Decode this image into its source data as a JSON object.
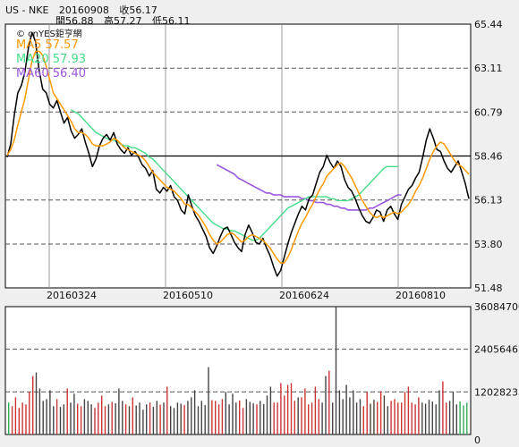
{
  "header": {
    "symbol": "US - NKE",
    "date": "20160908",
    "close_label": "收56.17",
    "open_label": "開56.88",
    "high_label": "高57.27",
    "low_label": "低56.11"
  },
  "watermark": "© cnYES鉅亨網",
  "colors": {
    "price": "#000000",
    "ma5": "#ff9900",
    "ma20": "#44dd88",
    "ma60": "#9955dd",
    "volume_up": "#cc3333",
    "volume_down": "#444444",
    "volume_neutral": "#33aa55"
  },
  "chart_data": [
    {
      "type": "line",
      "panel": "price",
      "y_ticks": [
        "65.44",
        "63.11",
        "60.79",
        "58.46",
        "56.13",
        "53.80",
        "51.48"
      ],
      "ylim": [
        51.48,
        65.44
      ],
      "x_tick_labels": [
        "20160324",
        "20160510",
        "20160624",
        "20160810"
      ],
      "reference_line": 58.46,
      "legend": [
        {
          "label": "MA5 57.57",
          "color": "#ff9900"
        },
        {
          "label": "MA20 57.93",
          "color": "#44dd88"
        },
        {
          "label": "MA60 56.40",
          "color": "#9955dd"
        }
      ],
      "series": [
        {
          "name": "Close",
          "values": [
            58.4,
            59.1,
            60.6,
            61.8,
            62.2,
            62.9,
            64.2,
            65.0,
            64.5,
            63.0,
            62.0,
            61.8,
            61.2,
            61.0,
            61.4,
            60.8,
            60.2,
            60.5,
            59.8,
            59.4,
            59.6,
            59.9,
            59.2,
            58.6,
            57.9,
            58.3,
            59.0,
            59.4,
            59.6,
            59.3,
            59.7,
            59.1,
            58.8,
            58.6,
            58.9,
            58.5,
            58.7,
            58.4,
            58.0,
            57.8,
            57.4,
            57.7,
            56.7,
            56.5,
            56.8,
            56.6,
            56.9,
            56.3,
            56.1,
            55.6,
            55.4,
            56.4,
            55.8,
            55.3,
            55.0,
            54.6,
            54.2,
            53.6,
            53.3,
            53.7,
            54.2,
            54.6,
            54.7,
            54.3,
            53.9,
            53.6,
            53.4,
            54.3,
            54.8,
            54.4,
            53.9,
            53.8,
            54.1,
            53.6,
            53.2,
            52.6,
            52.1,
            52.4,
            53.1,
            53.8,
            54.4,
            54.9,
            55.4,
            55.8,
            55.6,
            56.2,
            56.4,
            57.0,
            57.6,
            57.9,
            58.5,
            58.1,
            57.8,
            58.2,
            57.9,
            57.2,
            56.8,
            56.6,
            56.2,
            55.7,
            55.3,
            55.0,
            54.9,
            55.2,
            55.6,
            55.5,
            55.0,
            55.6,
            55.8,
            55.4,
            55.1,
            55.9,
            56.3,
            56.7,
            56.9,
            57.3,
            57.6,
            58.4,
            59.3,
            59.9,
            59.4,
            58.8,
            58.7,
            58.2,
            57.8,
            57.6,
            57.9,
            58.2,
            57.6,
            57.0,
            56.2
          ]
        },
        {
          "name": "MA5",
          "values": [
            58.5,
            58.8,
            59.3,
            60.1,
            60.8,
            61.5,
            62.5,
            63.5,
            64.0,
            64.0,
            63.8,
            63.2,
            62.5,
            61.8,
            61.5,
            61.2,
            60.9,
            60.6,
            60.3,
            59.9,
            59.7,
            59.7,
            59.6,
            59.4,
            59.1,
            59.0,
            59.0,
            59.0,
            59.1,
            59.2,
            59.4,
            59.3,
            59.1,
            58.9,
            58.8,
            58.7,
            58.6,
            58.5,
            58.4,
            58.2,
            57.9,
            57.6,
            57.4,
            57.2,
            57.0,
            56.8,
            56.7,
            56.6,
            56.4,
            56.2,
            55.9,
            55.9,
            55.7,
            55.5,
            55.3,
            55.0,
            54.7,
            54.3,
            54.0,
            53.8,
            53.9,
            54.1,
            54.3,
            54.4,
            54.3,
            54.1,
            53.9,
            54.0,
            54.2,
            54.3,
            54.2,
            54.1,
            54.0,
            53.8,
            53.6,
            53.3,
            53.0,
            52.8,
            52.8,
            53.1,
            53.5,
            54.0,
            54.5,
            54.9,
            55.2,
            55.6,
            55.9,
            56.3,
            56.7,
            57.0,
            57.4,
            57.6,
            57.8,
            58.0,
            58.1,
            57.9,
            57.6,
            57.3,
            56.9,
            56.5,
            56.1,
            55.8,
            55.5,
            55.3,
            55.2,
            55.3,
            55.2,
            55.3,
            55.4,
            55.5,
            55.4,
            55.5,
            55.7,
            55.9,
            56.2,
            56.6,
            56.9,
            57.3,
            57.8,
            58.3,
            58.7,
            59.0,
            59.2,
            59.1,
            58.8,
            58.5,
            58.2,
            58.0,
            57.9,
            57.7,
            57.5
          ]
        },
        {
          "name": "MA20",
          "values": [
            null,
            null,
            null,
            null,
            null,
            null,
            null,
            null,
            null,
            null,
            null,
            null,
            null,
            null,
            null,
            null,
            null,
            null,
            60.9,
            60.8,
            60.7,
            60.5,
            60.3,
            60.1,
            59.9,
            59.7,
            59.6,
            59.5,
            59.4,
            59.3,
            59.3,
            59.2,
            59.1,
            59.0,
            59.0,
            58.9,
            58.9,
            58.8,
            58.7,
            58.6,
            58.4,
            58.3,
            58.1,
            57.9,
            57.7,
            57.5,
            57.3,
            57.1,
            56.9,
            56.7,
            56.5,
            56.3,
            56.1,
            55.9,
            55.7,
            55.5,
            55.3,
            55.1,
            54.9,
            54.8,
            54.7,
            54.6,
            54.6,
            54.5,
            54.5,
            54.4,
            54.3,
            54.2,
            54.1,
            54.0,
            54.0,
            54.1,
            54.3,
            54.5,
            54.7,
            54.9,
            55.1,
            55.3,
            55.5,
            55.7,
            55.8,
            55.9,
            56.0,
            56.1,
            56.2,
            56.3,
            56.3,
            56.3,
            56.3,
            56.3,
            56.3,
            56.2,
            56.2,
            56.1,
            56.1,
            56.1,
            56.1,
            56.2,
            56.3,
            56.4,
            56.6,
            56.8,
            57.0,
            57.2,
            57.4,
            57.6,
            57.8,
            57.9,
            57.9,
            57.9,
            57.9
          ]
        },
        {
          "name": "MA60",
          "values": [
            null,
            null,
            null,
            null,
            null,
            null,
            null,
            null,
            null,
            null,
            null,
            null,
            null,
            null,
            null,
            null,
            null,
            null,
            null,
            null,
            null,
            null,
            null,
            null,
            null,
            null,
            null,
            null,
            null,
            null,
            null,
            null,
            null,
            null,
            null,
            null,
            null,
            null,
            null,
            null,
            null,
            null,
            null,
            null,
            null,
            null,
            null,
            null,
            null,
            null,
            null,
            null,
            null,
            null,
            null,
            null,
            null,
            null,
            null,
            58.0,
            57.9,
            57.8,
            57.7,
            57.6,
            57.5,
            57.3,
            57.2,
            57.1,
            57.0,
            56.9,
            56.8,
            56.7,
            56.6,
            56.5,
            56.5,
            56.4,
            56.4,
            56.4,
            56.3,
            56.3,
            56.3,
            56.3,
            56.3,
            56.2,
            56.2,
            56.1,
            56.1,
            56.0,
            56.0,
            56.0,
            55.9,
            55.9,
            55.8,
            55.8,
            55.7,
            55.7,
            55.6,
            55.6,
            55.6,
            55.6,
            55.6,
            55.6,
            55.7,
            55.7,
            55.8,
            55.9,
            56.0,
            56.1,
            56.2,
            56.3,
            56.4,
            56.4
          ]
        }
      ]
    },
    {
      "type": "bar",
      "panel": "volume",
      "y_ticks": [
        "36084700",
        "24056467",
        "12028233",
        "0"
      ],
      "ylim": [
        0,
        36084700
      ],
      "values": [
        9000000,
        8000000,
        10500000,
        7500000,
        9000000,
        8500000,
        12000000,
        16500000,
        17500000,
        13000000,
        9500000,
        10000000,
        12500000,
        8000000,
        10000000,
        7800000,
        8500000,
        13000000,
        9000000,
        11500000,
        8700000,
        8000000,
        10000000,
        9500000,
        8500000,
        7500000,
        9000000,
        11000000,
        8000000,
        8500000,
        9200000,
        8800000,
        13000000,
        9500000,
        8500000,
        8000000,
        10500000,
        8200000,
        9000000,
        7000000,
        8500000,
        9000000,
        7800000,
        9500000,
        8400000,
        9000000,
        13500000,
        8000000,
        7500000,
        9000000,
        8700000,
        8300000,
        9500000,
        10500000,
        12500000,
        8000000,
        9500000,
        8300000,
        19000000,
        9700000,
        9500000,
        8500000,
        10000000,
        12000000,
        8500000,
        11500000,
        9000000,
        9600000,
        7500000,
        10000000,
        9200000,
        8800000,
        8500000,
        9500000,
        8600000,
        11000000,
        13500000,
        9000000,
        9000000,
        14500000,
        11000000,
        14000000,
        14500000,
        9500000,
        10500000,
        10500000,
        13000000,
        8500000,
        9000000,
        13500000,
        10000000,
        9000000,
        16500000,
        18000000,
        9000000,
        36084700,
        12500000,
        10000000,
        14000000,
        10500000,
        12500000,
        9000000,
        10000000,
        8000000,
        12000000,
        8700000,
        9800000,
        9200000,
        12200000,
        11000000,
        8000000,
        9500000,
        10000000,
        9000000,
        9000000,
        12000000,
        13500000,
        9000000,
        8500000,
        10500000,
        9000000,
        8700000,
        9800000,
        9300000,
        8500000,
        12500000,
        15000000,
        9000000,
        9500000,
        12000000,
        8500000,
        9300000,
        8200000,
        9000000
      ]
    }
  ]
}
